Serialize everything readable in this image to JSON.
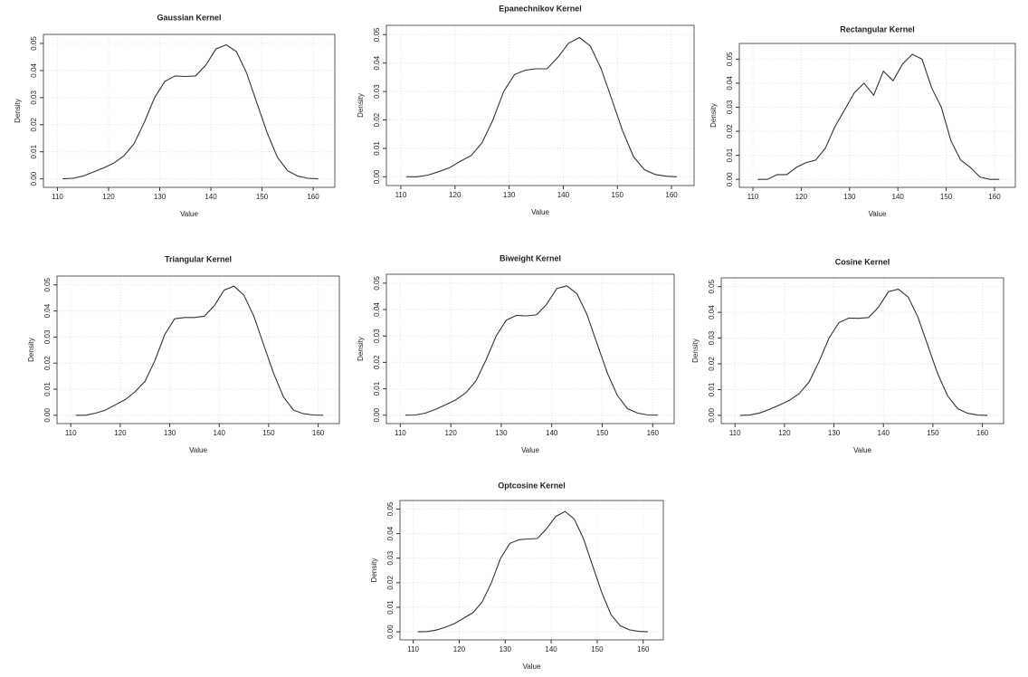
{
  "chart_data": [
    {
      "type": "line",
      "title": "Gaussian Kernel",
      "x_label": "Value",
      "y_label": "Density",
      "x": [
        111,
        113,
        115,
        117,
        119,
        121,
        123,
        125,
        127,
        129,
        131,
        133,
        135,
        137,
        139,
        141,
        143,
        145,
        147,
        149,
        151,
        153,
        155,
        157,
        159,
        161
      ],
      "series": [
        {
          "color": "#333333",
          "values": [
            0,
            0.0002,
            0.001,
            0.0025,
            0.004,
            0.0058,
            0.0085,
            0.013,
            0.021,
            0.03,
            0.036,
            0.038,
            0.0378,
            0.038,
            0.042,
            0.048,
            0.0495,
            0.047,
            0.039,
            0.028,
            0.017,
            0.008,
            0.003,
            0.001,
            0.0002,
            0
          ]
        }
      ],
      "xlim": [
        108.5,
        163
      ],
      "ylim": [
        -0.0018,
        0.052
      ],
      "xticks": [
        110,
        120,
        130,
        140,
        150,
        160
      ],
      "yticks": [
        {
          "value": 0,
          "label": "0.00"
        },
        {
          "value": 0.01,
          "label": "0.01"
        },
        {
          "value": 0.02,
          "label": "0.02"
        },
        {
          "value": 0.03,
          "label": "0.03"
        },
        {
          "value": 0.04,
          "label": "0.04"
        },
        {
          "value": 0.05,
          "label": "0.05"
        }
      ],
      "grid": true
    },
    {
      "type": "line",
      "title": "Epanechnikov Kernel",
      "x_label": "Value",
      "y_label": "Density",
      "x": [
        111,
        113,
        115,
        117,
        119,
        121,
        123,
        125,
        127,
        129,
        131,
        133,
        135,
        137,
        139,
        141,
        143,
        145,
        147,
        149,
        151,
        153,
        155,
        157,
        159,
        161
      ],
      "series": [
        {
          "color": "#333333",
          "values": [
            0,
            0,
            0.0006,
            0.0018,
            0.0032,
            0.0055,
            0.0075,
            0.012,
            0.02,
            0.03,
            0.036,
            0.0375,
            0.038,
            0.038,
            0.042,
            0.047,
            0.049,
            0.046,
            0.038,
            0.027,
            0.016,
            0.007,
            0.0025,
            0.0008,
            0.0002,
            0
          ]
        }
      ],
      "xlim": [
        108.5,
        163
      ],
      "ylim": [
        -0.0018,
        0.052
      ],
      "xticks": [
        110,
        120,
        130,
        140,
        150,
        160
      ],
      "yticks": [
        {
          "value": 0,
          "label": "0.00"
        },
        {
          "value": 0.01,
          "label": "0.01"
        },
        {
          "value": 0.02,
          "label": "0.02"
        },
        {
          "value": 0.03,
          "label": "0.03"
        },
        {
          "value": 0.04,
          "label": "0.04"
        },
        {
          "value": 0.05,
          "label": "0.05"
        }
      ],
      "grid": true
    },
    {
      "type": "line",
      "title": "Rectangular Kernel",
      "x_label": "Value",
      "y_label": "Density",
      "x": [
        111,
        113,
        115,
        117,
        119,
        121,
        123,
        125,
        127,
        129,
        131,
        133,
        135,
        137,
        139,
        141,
        143,
        145,
        147,
        149,
        151,
        153,
        155,
        157,
        159,
        161
      ],
      "series": [
        {
          "color": "#333333",
          "values": [
            0,
            0,
            0.002,
            0.002,
            0.005,
            0.007,
            0.008,
            0.013,
            0.022,
            0.029,
            0.036,
            0.04,
            0.035,
            0.045,
            0.041,
            0.048,
            0.052,
            0.05,
            0.038,
            0.03,
            0.016,
            0.008,
            0.005,
            0.001,
            0,
            0
          ]
        }
      ],
      "xlim": [
        108.5,
        163
      ],
      "ylim": [
        -0.0018,
        0.055
      ],
      "xticks": [
        110,
        120,
        130,
        140,
        150,
        160
      ],
      "yticks": [
        {
          "value": 0,
          "label": "0.00"
        },
        {
          "value": 0.01,
          "label": "0.01"
        },
        {
          "value": 0.02,
          "label": "0.02"
        },
        {
          "value": 0.03,
          "label": "0.03"
        },
        {
          "value": 0.04,
          "label": "0.04"
        },
        {
          "value": 0.05,
          "label": "0.05"
        }
      ],
      "grid": true
    },
    {
      "type": "line",
      "title": "Triangular Kernel",
      "x_label": "Value",
      "y_label": "Density",
      "x": [
        111,
        113,
        115,
        117,
        119,
        121,
        123,
        125,
        127,
        129,
        131,
        133,
        135,
        137,
        139,
        141,
        143,
        145,
        147,
        149,
        151,
        153,
        155,
        157,
        159,
        161
      ],
      "series": [
        {
          "color": "#333333",
          "values": [
            0,
            0,
            0.0008,
            0.002,
            0.004,
            0.006,
            0.009,
            0.013,
            0.021,
            0.031,
            0.037,
            0.0375,
            0.0375,
            0.038,
            0.042,
            0.048,
            0.0495,
            0.046,
            0.038,
            0.027,
            0.016,
            0.007,
            0.002,
            0.0006,
            0.0001,
            0
          ]
        }
      ],
      "xlim": [
        108.5,
        163
      ],
      "ylim": [
        -0.0018,
        0.052
      ],
      "xticks": [
        110,
        120,
        130,
        140,
        150,
        160
      ],
      "yticks": [
        {
          "value": 0,
          "label": "0.00"
        },
        {
          "value": 0.01,
          "label": "0.01"
        },
        {
          "value": 0.02,
          "label": "0.02"
        },
        {
          "value": 0.03,
          "label": "0.03"
        },
        {
          "value": 0.04,
          "label": "0.04"
        },
        {
          "value": 0.05,
          "label": "0.05"
        }
      ],
      "grid": true
    },
    {
      "type": "line",
      "title": "Biweight Kernel",
      "x_label": "Value",
      "y_label": "Density",
      "x": [
        111,
        113,
        115,
        117,
        119,
        121,
        123,
        125,
        127,
        129,
        131,
        133,
        135,
        137,
        139,
        141,
        143,
        145,
        147,
        149,
        151,
        153,
        155,
        157,
        159,
        161
      ],
      "series": [
        {
          "color": "#333333",
          "values": [
            0,
            0.0001,
            0.0008,
            0.0022,
            0.004,
            0.0058,
            0.0085,
            0.013,
            0.021,
            0.03,
            0.036,
            0.0378,
            0.0376,
            0.038,
            0.042,
            0.048,
            0.049,
            0.046,
            0.038,
            0.027,
            0.016,
            0.0075,
            0.0025,
            0.0008,
            0.0001,
            0
          ]
        }
      ],
      "xlim": [
        108.5,
        163
      ],
      "ylim": [
        -0.0018,
        0.052
      ],
      "xticks": [
        110,
        120,
        130,
        140,
        150,
        160
      ],
      "yticks": [
        {
          "value": 0,
          "label": "0.00"
        },
        {
          "value": 0.01,
          "label": "0.01"
        },
        {
          "value": 0.02,
          "label": "0.02"
        },
        {
          "value": 0.03,
          "label": "0.03"
        },
        {
          "value": 0.04,
          "label": "0.04"
        },
        {
          "value": 0.05,
          "label": "0.05"
        }
      ],
      "grid": true
    },
    {
      "type": "line",
      "title": "Cosine Kernel",
      "x_label": "Value",
      "y_label": "Density",
      "x": [
        111,
        113,
        115,
        117,
        119,
        121,
        123,
        125,
        127,
        129,
        131,
        133,
        135,
        137,
        139,
        141,
        143,
        145,
        147,
        149,
        151,
        153,
        155,
        157,
        159,
        161
      ],
      "series": [
        {
          "color": "#333333",
          "values": [
            0,
            0.0001,
            0.0009,
            0.0023,
            0.004,
            0.0058,
            0.0085,
            0.013,
            0.021,
            0.03,
            0.036,
            0.0378,
            0.0377,
            0.038,
            0.042,
            0.048,
            0.049,
            0.046,
            0.038,
            0.027,
            0.016,
            0.0075,
            0.0026,
            0.0008,
            0.0001,
            0
          ]
        }
      ],
      "xlim": [
        108.5,
        163
      ],
      "ylim": [
        -0.0018,
        0.052
      ],
      "xticks": [
        110,
        120,
        130,
        140,
        150,
        160
      ],
      "yticks": [
        {
          "value": 0,
          "label": "0.00"
        },
        {
          "value": 0.01,
          "label": "0.01"
        },
        {
          "value": 0.02,
          "label": "0.02"
        },
        {
          "value": 0.03,
          "label": "0.03"
        },
        {
          "value": 0.04,
          "label": "0.04"
        },
        {
          "value": 0.05,
          "label": "0.05"
        }
      ],
      "grid": true
    },
    {
      "type": "line",
      "title": "Optcosine Kernel",
      "x_label": "Value",
      "y_label": "Density",
      "x": [
        111,
        113,
        115,
        117,
        119,
        121,
        123,
        125,
        127,
        129,
        131,
        133,
        135,
        137,
        139,
        141,
        143,
        145,
        147,
        149,
        151,
        153,
        155,
        157,
        159,
        161
      ],
      "series": [
        {
          "color": "#333333",
          "values": [
            0,
            0.0001,
            0.0007,
            0.0019,
            0.0034,
            0.0056,
            0.0078,
            0.0122,
            0.02,
            0.03,
            0.036,
            0.0375,
            0.0378,
            0.038,
            0.042,
            0.047,
            0.049,
            0.046,
            0.038,
            0.027,
            0.016,
            0.007,
            0.0025,
            0.0008,
            0.0002,
            0
          ]
        }
      ],
      "xlim": [
        108.5,
        163
      ],
      "ylim": [
        -0.0018,
        0.052
      ],
      "xticks": [
        110,
        120,
        130,
        140,
        150,
        160
      ],
      "yticks": [
        {
          "value": 0,
          "label": "0.00"
        },
        {
          "value": 0.01,
          "label": "0.01"
        },
        {
          "value": 0.02,
          "label": "0.02"
        },
        {
          "value": 0.03,
          "label": "0.03"
        },
        {
          "value": 0.04,
          "label": "0.04"
        },
        {
          "value": 0.05,
          "label": "0.05"
        }
      ],
      "grid": true
    }
  ]
}
